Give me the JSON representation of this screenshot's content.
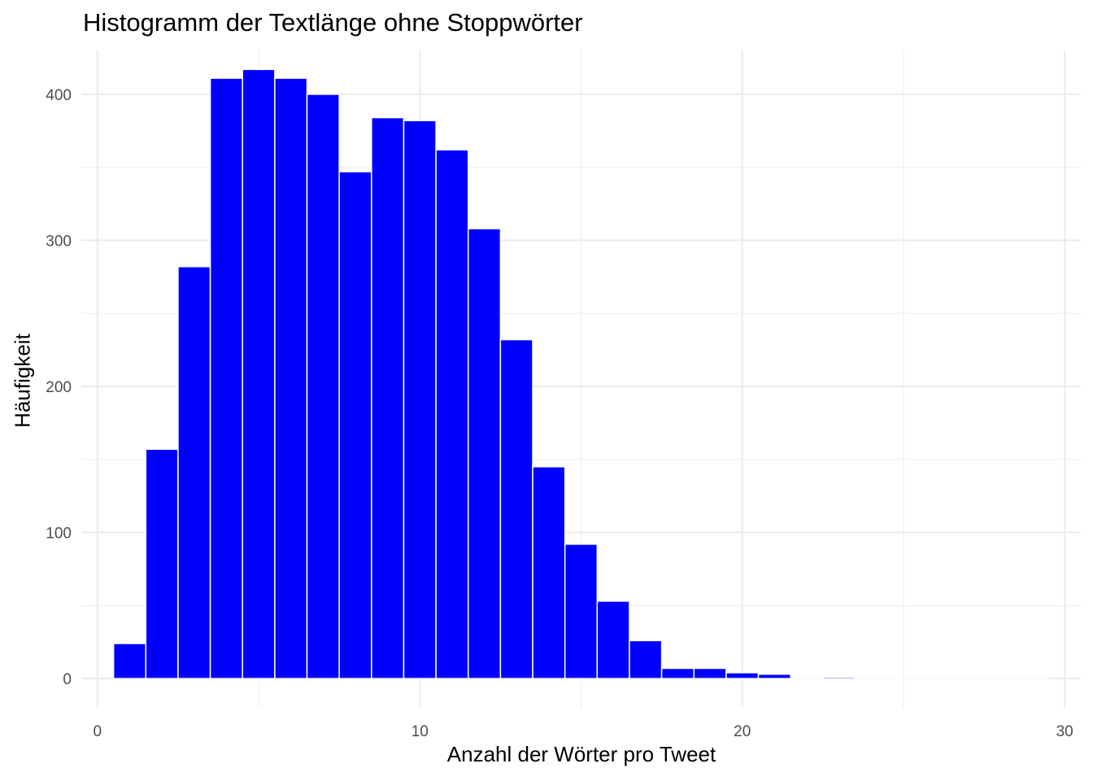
{
  "chart_data": {
    "type": "bar",
    "title": "Histogramm der Textlänge ohne Stoppwörter",
    "xlabel": "Anzahl der Wörter pro Tweet",
    "ylabel": "Häufigkeit",
    "xlim": [
      -0.5,
      30.5
    ],
    "ylim": [
      -20,
      430
    ],
    "x_ticks": [
      0,
      10,
      20,
      30
    ],
    "y_ticks": [
      0,
      100,
      200,
      300,
      400
    ],
    "grid": true,
    "legend": "none",
    "bar_color": "#0000FF",
    "bar_outline_color": "#FFFFFF",
    "bins": [
      {
        "center": 1,
        "value": 24
      },
      {
        "center": 2,
        "value": 157
      },
      {
        "center": 3,
        "value": 282
      },
      {
        "center": 4,
        "value": 411
      },
      {
        "center": 5,
        "value": 417
      },
      {
        "center": 6,
        "value": 411
      },
      {
        "center": 7,
        "value": 400
      },
      {
        "center": 8,
        "value": 347
      },
      {
        "center": 9,
        "value": 384
      },
      {
        "center": 10,
        "value": 382
      },
      {
        "center": 11,
        "value": 362
      },
      {
        "center": 12,
        "value": 308
      },
      {
        "center": 13,
        "value": 232
      },
      {
        "center": 14,
        "value": 145
      },
      {
        "center": 15,
        "value": 92
      },
      {
        "center": 16,
        "value": 53
      },
      {
        "center": 17,
        "value": 26
      },
      {
        "center": 18,
        "value": 7
      },
      {
        "center": 19,
        "value": 7
      },
      {
        "center": 20,
        "value": 4
      },
      {
        "center": 21,
        "value": 3
      },
      {
        "center": 22,
        "value": 0
      },
      {
        "center": 23,
        "value": 1
      },
      {
        "center": 24,
        "value": 0
      },
      {
        "center": 25,
        "value": 0
      },
      {
        "center": 26,
        "value": 0
      },
      {
        "center": 27,
        "value": 0
      },
      {
        "center": 28,
        "value": 0
      },
      {
        "center": 29,
        "value": 0
      }
    ]
  }
}
